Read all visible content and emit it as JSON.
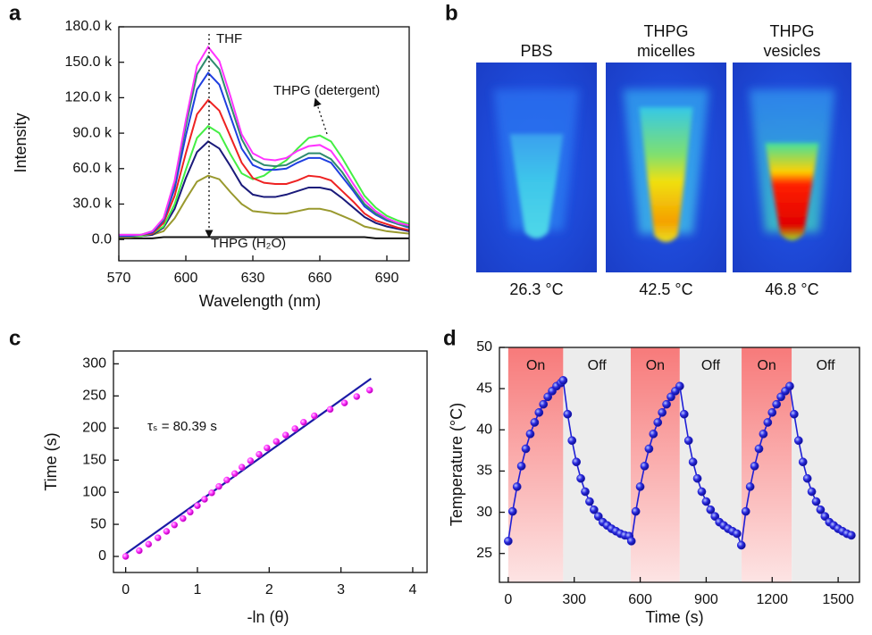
{
  "chart_data": [
    {
      "type": "line",
      "panel_label": "a",
      "x_label": "Wavelength (nm)",
      "y_label": "Intensity",
      "x": [
        570,
        575,
        580,
        585,
        590,
        595,
        600,
        605,
        610,
        615,
        620,
        625,
        630,
        635,
        640,
        645,
        650,
        655,
        660,
        665,
        670,
        675,
        680,
        685,
        690,
        695,
        700
      ],
      "series": [
        {
          "color": "#ff33ff",
          "values": [
            4000,
            4000,
            4000,
            7000,
            18000,
            50000,
            101000,
            147000,
            163000,
            151000,
            121000,
            89000,
            73000,
            68000,
            67000,
            69000,
            75000,
            79000,
            80000,
            75000,
            62000,
            47000,
            33000,
            24000,
            18000,
            14000,
            12000
          ]
        },
        {
          "color": "#2e8b6e",
          "values": [
            4000,
            4000,
            4000,
            7000,
            17000,
            48000,
            96000,
            140000,
            155000,
            144000,
            114000,
            85000,
            68000,
            63000,
            62000,
            63000,
            68000,
            73000,
            73000,
            68000,
            57000,
            43000,
            30000,
            22000,
            17000,
            13000,
            11000
          ]
        },
        {
          "color": "#1f3fe0",
          "values": [
            3000,
            3000,
            4000,
            6000,
            16000,
            43000,
            88000,
            127000,
            141000,
            131000,
            104000,
            77000,
            63000,
            59000,
            59000,
            60000,
            65000,
            69000,
            69000,
            65000,
            53000,
            41000,
            28000,
            21000,
            16000,
            13000,
            10000
          ]
        },
        {
          "color": "#ee2222",
          "values": [
            3000,
            3000,
            4000,
            5000,
            14000,
            37000,
            73000,
            106000,
            118000,
            109000,
            87000,
            65000,
            52000,
            48000,
            47000,
            47000,
            50000,
            54000,
            53000,
            50000,
            41000,
            32000,
            22000,
            16000,
            13000,
            10000,
            8000
          ]
        },
        {
          "color": "#44ee44",
          "values": [
            3000,
            3000,
            3000,
            5000,
            11000,
            30000,
            59000,
            86000,
            96000,
            90000,
            72000,
            56000,
            51000,
            54000,
            61000,
            67000,
            77000,
            86000,
            88000,
            83000,
            69000,
            53000,
            37000,
            27000,
            20000,
            16000,
            13000
          ]
        },
        {
          "color": "#1a1a7a",
          "values": [
            3000,
            3000,
            3000,
            4000,
            10000,
            26000,
            52000,
            74000,
            83000,
            77000,
            62000,
            46000,
            38000,
            36000,
            36000,
            38000,
            41000,
            44000,
            44000,
            42000,
            35000,
            27000,
            19000,
            14000,
            11000,
            9000,
            7000
          ]
        },
        {
          "color": "#99992e",
          "values": [
            2000,
            2000,
            3000,
            4000,
            7000,
            18000,
            34000,
            49000,
            54000,
            51000,
            40000,
            30000,
            24000,
            23000,
            22000,
            22000,
            24000,
            26000,
            26000,
            24000,
            20000,
            16000,
            11000,
            9000,
            7000,
            6000,
            5000
          ]
        },
        {
          "color": "#111111",
          "values": [
            1000,
            1000,
            1000,
            1000,
            2000,
            2000,
            2000,
            2000,
            2000,
            2000,
            2000,
            2000,
            2000,
            2000,
            2000,
            2000,
            2000,
            2000,
            2000,
            2000,
            2000,
            2000,
            2000,
            1000,
            1000,
            1000,
            1000
          ]
        }
      ],
      "xlim": [
        570,
        700
      ],
      "ylim": [
        -18000,
        180000
      ],
      "xticks": [
        570,
        600,
        630,
        660,
        690
      ],
      "yticks": [
        {
          "value": 0,
          "label": "0.0"
        },
        {
          "value": 30000,
          "label": "30.0 k"
        },
        {
          "value": 60000,
          "label": "60.0 k"
        },
        {
          "value": 90000,
          "label": "90.0 k"
        },
        {
          "value": 120000,
          "label": "120.0 k"
        },
        {
          "value": 150000,
          "label": "150.0 k"
        },
        {
          "value": 180000,
          "label": "180.0 k"
        }
      ],
      "annotations": [
        "THF",
        "THPG (detergent)",
        "THPG (H₂O)"
      ]
    },
    {
      "type": "image",
      "panel_label": "b",
      "images": [
        {
          "label": "PBS",
          "temperature": "26.3 °C"
        },
        {
          "label": "THPG micelles",
          "temperature": "42.5 °C"
        },
        {
          "label": "THPG vesicles",
          "temperature": "46.8 °C"
        }
      ]
    },
    {
      "type": "scatter",
      "panel_label": "c",
      "x_label": "-ln (θ)",
      "y_label": "Time (s)",
      "series": [
        {
          "type": "scatter",
          "color": "#ff33ff",
          "x": [
            0,
            0.19,
            0.32,
            0.45,
            0.57,
            0.68,
            0.8,
            0.9,
            1.0,
            1.1,
            1.2,
            1.3,
            1.41,
            1.52,
            1.62,
            1.74,
            1.86,
            1.97,
            2.1,
            2.23,
            2.36,
            2.48,
            2.63,
            2.85,
            3.05,
            3.22,
            3.4
          ],
          "values": [
            0,
            9,
            19,
            29,
            39,
            49,
            59,
            69,
            79,
            89,
            99,
            109,
            119,
            129,
            139,
            149,
            159,
            169,
            179,
            189,
            199,
            209,
            219,
            229,
            239,
            249,
            259
          ]
        },
        {
          "type": "line",
          "color": "#1a1aa6",
          "x": [
            0,
            3.42
          ],
          "values": [
            4,
            277
          ]
        }
      ],
      "xlim": [
        -0.17,
        4.2
      ],
      "ylim": [
        -25,
        320
      ],
      "xticks": [
        0,
        1,
        2,
        3,
        4
      ],
      "yticks": [
        0,
        50,
        100,
        150,
        200,
        250,
        300
      ],
      "annotation": "τₛ = 80.39 s"
    },
    {
      "type": "line",
      "panel_label": "d",
      "x_label": "Time (s)",
      "y_label": "Temperature (°C)",
      "x": [
        0,
        20,
        40,
        60,
        80,
        100,
        120,
        140,
        160,
        180,
        200,
        220,
        240,
        250,
        270,
        290,
        310,
        330,
        350,
        370,
        390,
        410,
        430,
        450,
        470,
        490,
        510,
        530,
        550,
        560,
        580,
        600,
        620,
        640,
        660,
        680,
        700,
        720,
        740,
        760,
        780,
        800,
        820,
        840,
        860,
        880,
        900,
        920,
        940,
        960,
        980,
        1000,
        1020,
        1040,
        1060,
        1080,
        1100,
        1120,
        1140,
        1160,
        1180,
        1200,
        1220,
        1240,
        1260,
        1280,
        1300,
        1320,
        1340,
        1360,
        1380,
        1400,
        1420,
        1440,
        1460,
        1480,
        1500,
        1520,
        1540,
        1560
      ],
      "series": [
        {
          "color": "#1f1fd6",
          "values": [
            26.5,
            30.1,
            33.1,
            35.6,
            37.7,
            39.5,
            40.9,
            42.1,
            43.1,
            44.0,
            44.7,
            45.3,
            45.7,
            46.0,
            41.9,
            38.7,
            36.1,
            34.1,
            32.5,
            31.3,
            30.3,
            29.5,
            28.8,
            28.4,
            28.0,
            27.7,
            27.4,
            27.2,
            27.1,
            26.5,
            30.1,
            33.1,
            35.6,
            37.7,
            39.5,
            40.9,
            42.1,
            43.1,
            44.0,
            44.7,
            45.3,
            41.9,
            38.7,
            36.1,
            34.1,
            32.5,
            31.3,
            30.3,
            29.5,
            28.8,
            28.4,
            28.0,
            27.7,
            27.4,
            26.0,
            30.1,
            33.1,
            35.6,
            37.7,
            39.5,
            40.9,
            42.1,
            43.1,
            44.0,
            44.7,
            45.3,
            41.9,
            38.7,
            36.1,
            34.1,
            32.5,
            31.3,
            30.3,
            29.5,
            28.8,
            28.4,
            28.0,
            27.7,
            27.4,
            27.2
          ]
        }
      ],
      "regions": [
        {
          "label": "On",
          "start": 0,
          "end": 250
        },
        {
          "label": "Off",
          "start": 250,
          "end": 557
        },
        {
          "label": "On",
          "start": 557,
          "end": 780
        },
        {
          "label": "Off",
          "start": 780,
          "end": 1061
        },
        {
          "label": "On",
          "start": 1061,
          "end": 1289
        },
        {
          "label": "Off",
          "start": 1289,
          "end": 1597
        }
      ],
      "xlim": [
        -40,
        1597
      ],
      "ylim": [
        21.5,
        50
      ],
      "xticks": [
        0,
        300,
        600,
        900,
        1200,
        1500
      ],
      "yticks": [
        25,
        30,
        35,
        40,
        45,
        50
      ]
    }
  ]
}
